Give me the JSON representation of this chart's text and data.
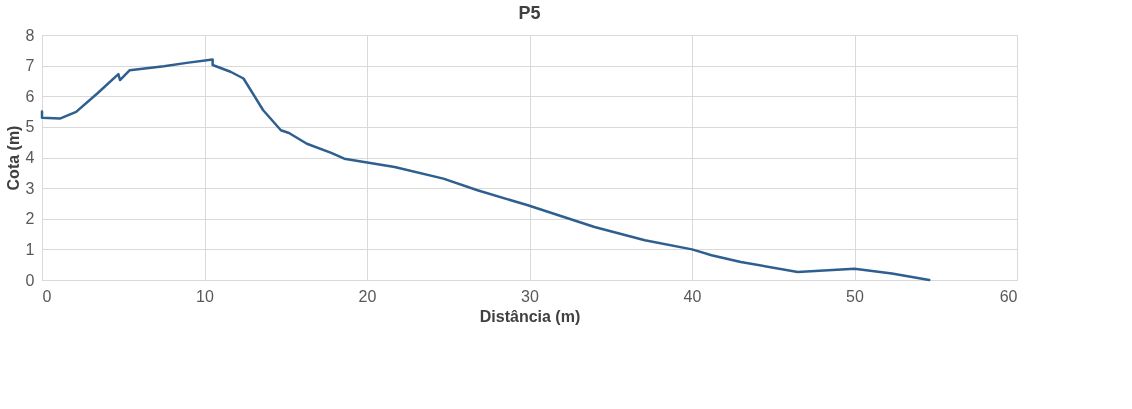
{
  "chart_data": {
    "type": "line",
    "title": "P5",
    "xlabel": "Distância (m)",
    "ylabel": "Cota (m)",
    "x": [
      0,
      0,
      1.1,
      2.1,
      3.4,
      4.7,
      4.8,
      5.4,
      7.5,
      8.9,
      10.5,
      10.5,
      11.6,
      12.4,
      13.6,
      14.7,
      15.2,
      16.3,
      17.8,
      18.6,
      21.7,
      24.7,
      26.8,
      29.9,
      34.0,
      37.1,
      40.0,
      41.2,
      43.0,
      46.5,
      50.0,
      52.3,
      54.6
    ],
    "series": [
      {
        "color": "#2e5f8f",
        "values": [
          5.5,
          5.3,
          5.27,
          5.49,
          6.09,
          6.72,
          6.53,
          6.85,
          6.98,
          7.09,
          7.2,
          7.02,
          6.8,
          6.58,
          5.55,
          4.89,
          4.8,
          4.45,
          4.15,
          3.96,
          3.69,
          3.31,
          2.93,
          2.44,
          1.73,
          1.3,
          1.0,
          0.81,
          0.59,
          0.26,
          0.37,
          0.21,
          0
        ]
      }
    ],
    "xlim": [
      0,
      60
    ],
    "xticks": [
      0,
      10,
      20,
      30,
      40,
      50,
      60
    ],
    "ylim": [
      0,
      8
    ],
    "yticks": [
      0,
      1,
      2,
      3,
      4,
      5,
      6,
      7,
      8
    ],
    "grid": true,
    "marker": "none",
    "line_style": "solid"
  }
}
